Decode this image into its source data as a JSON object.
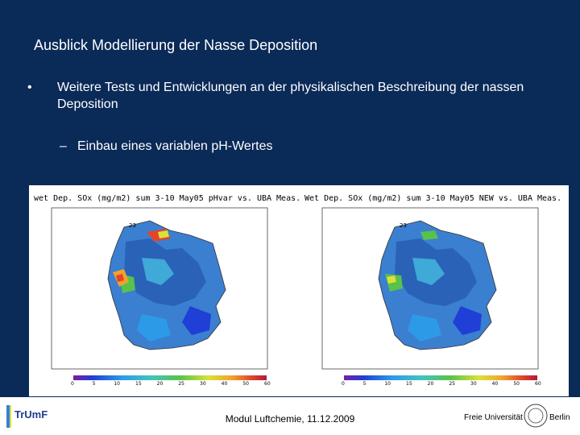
{
  "slide": {
    "title": "Ausblick Modellierung der Nasse Deposition",
    "bullet_symbol": "•",
    "bullet_text": "Weitere Tests und Entwicklungen an der physikalischen Beschreibung der nassen Deposition",
    "sub_symbol": "–",
    "sub_text": "Einbau eines variablen pH-Wertes"
  },
  "maps": [
    {
      "title": "wet Dep. SOx (mg/m2) sum 3-10 May05 pHvar vs. UBA Meas.",
      "top_label": "23"
    },
    {
      "title": "Wet Dep. SOx (mg/m2) sum 3-10 May05 NEW vs. UBA Meas.",
      "top_label": "23"
    }
  ],
  "colorbar_ticks": [
    "0",
    "5",
    "10",
    "15",
    "20",
    "25",
    "30",
    "40",
    "50",
    "60"
  ],
  "footer": {
    "center_text": "Modul Luftchemie, 11.12.2009",
    "left_logo_text": "TrUmF",
    "right_logo_text_1": "Freie Universität",
    "right_logo_text_2": "Berlin"
  }
}
